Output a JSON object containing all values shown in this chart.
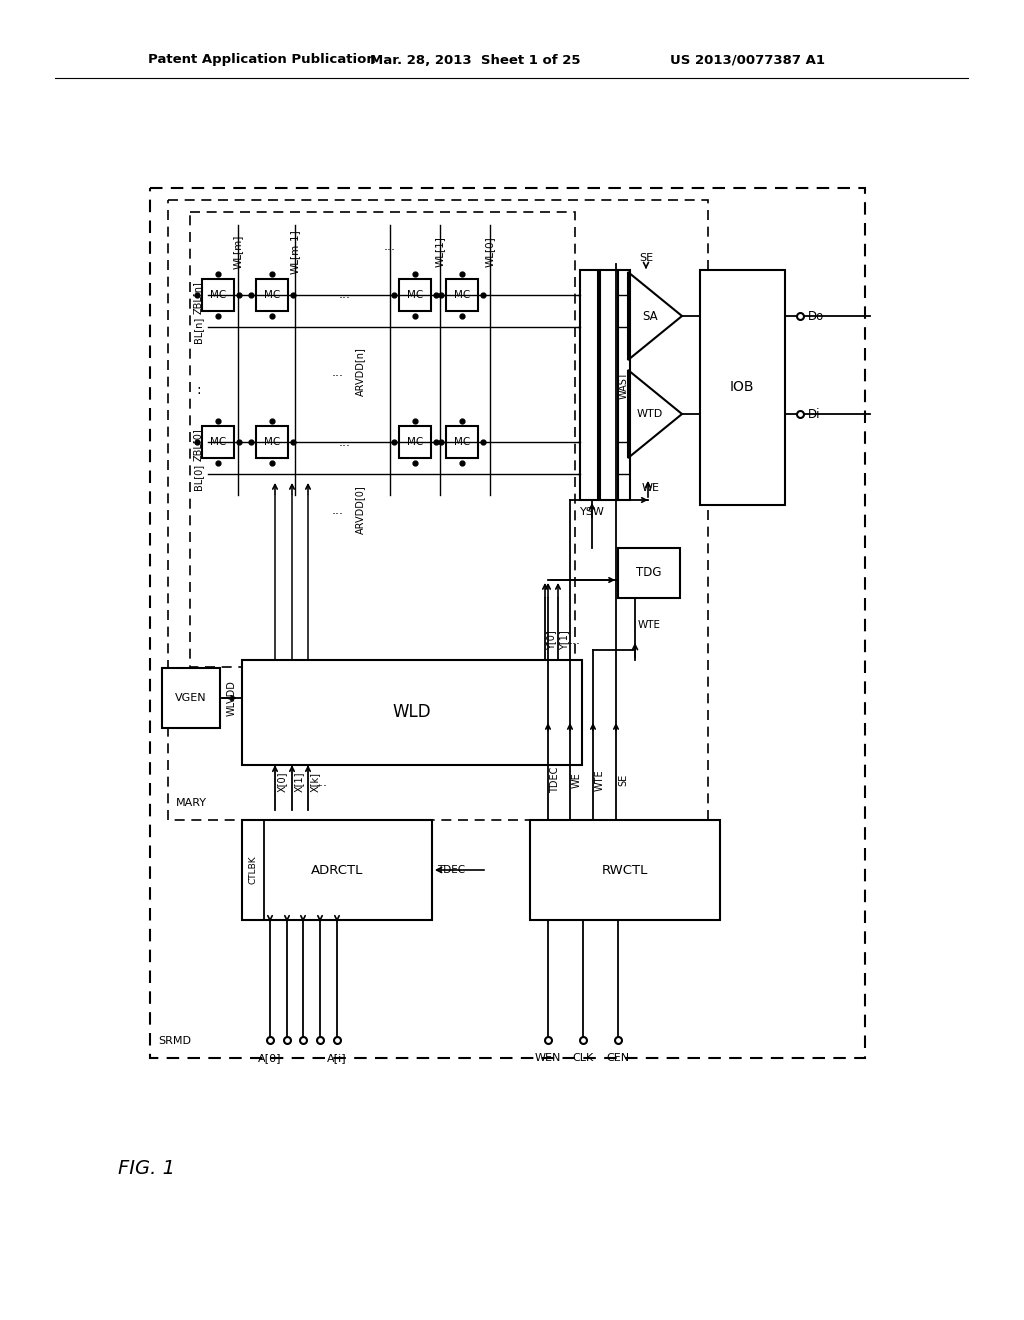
{
  "bg_color": "#ffffff",
  "header_left": "Patent Application Publication",
  "header_mid": "Mar. 28, 2013  Sheet 1 of 25",
  "header_right": "US 2013/0077387 A1"
}
